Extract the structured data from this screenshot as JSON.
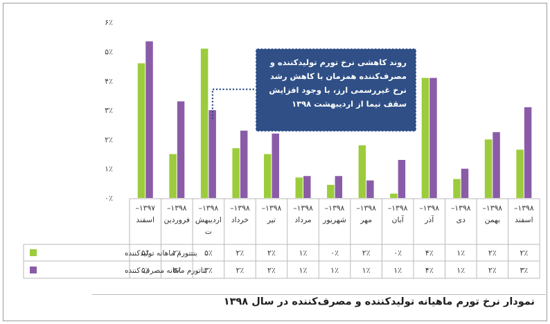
{
  "chart_data": {
    "type": "bar",
    "categories": [
      "۱۳۹۷– اسفند",
      "۱۳۹۸– فروردین",
      "۱۳۹۸– اردیبهشت",
      "۱۳۹۸– خرداد",
      "۱۳۹۸– تیر",
      "۱۳۹۸– مرداد",
      "۱۳۹۸– شهریور",
      "۱۳۹۸– مهر",
      "۱۳۹۸– آبان",
      "۱۳۹۸– آذر",
      "۱۳۹۸– دی",
      "۱۳۹۸– بهمن",
      "۱۳۹۸– اسفند"
    ],
    "category_lines": [
      [
        "–۱۳۹۷",
        "اسفند"
      ],
      [
        "–۱۳۹۸",
        "فروردین"
      ],
      [
        "–۱۳۹۸",
        "اردیبهش",
        "ت"
      ],
      [
        "–۱۳۹۸",
        "خرداد"
      ],
      [
        "–۱۳۹۸",
        "تیر"
      ],
      [
        "–۱۳۹۸",
        "مرداد"
      ],
      [
        "–۱۳۹۸",
        "شهریور"
      ],
      [
        "–۱۳۹۸",
        "مهر"
      ],
      [
        "–۱۳۹۸",
        "آبان"
      ],
      [
        "–۱۳۹۸",
        "آذر"
      ],
      [
        "–۱۳۹۸",
        "دی"
      ],
      [
        "–۱۳۹۸",
        "بهمن"
      ],
      [
        "–۱۳۹۸",
        "اسفند"
      ]
    ],
    "series": [
      {
        "name": "بتتتورم ماهانه تولیدکننده",
        "color": "#9ccc3c",
        "values": [
          4.6,
          1.5,
          5.1,
          1.7,
          1.5,
          0.7,
          0.45,
          1.8,
          0.15,
          4.1,
          0.65,
          2.0,
          1.65
        ],
        "table_labels": [
          "۵٪",
          "۲٪",
          "۵٪",
          "۲٪",
          "۲٪",
          "۱٪",
          "۰٪",
          "۲٪",
          "۰٪",
          "۴٪",
          "۱٪",
          "۲٪",
          "۲٪"
        ]
      },
      {
        "name": "بتاتورم ماهانه مصرف کننده",
        "color": "#8a5ca8",
        "values": [
          5.35,
          3.3,
          3.0,
          2.3,
          2.2,
          0.75,
          0.75,
          0.6,
          1.3,
          4.1,
          1.0,
          2.25,
          3.1
        ],
        "table_labels": [
          "۵٪",
          "۳٪",
          "۳٪",
          "۲٪",
          "۲٪",
          "۱٪",
          "۱٪",
          "۱٪",
          "۱٪",
          "۴٪",
          "۱٪",
          "۲٪",
          "۳٪"
        ]
      }
    ],
    "y_ticks": [
      0,
      1,
      2,
      3,
      4,
      5,
      6
    ],
    "y_tick_labels": [
      "۰٪",
      "۱٪",
      "۲٪",
      "۳٪",
      "۴٪",
      "۵٪",
      "۶٪"
    ],
    "ylim": [
      0,
      6
    ],
    "grid": false,
    "legend": "data-table-left",
    "annotation": "روند کاهشی نرخ تورم تولیدکننده و مصرف‌کننده همزمان با کاهش رشد نرخ غیررسمی ارز، با وجود افزایش سقف نیما از اردیبهشت ۱۳۹۸",
    "annotation_target_category": 2
  },
  "caption": "نمودار نرخ تورم ماهیانه تولیدکننده و مصرف‌کننده در سال ۱۳۹۸"
}
